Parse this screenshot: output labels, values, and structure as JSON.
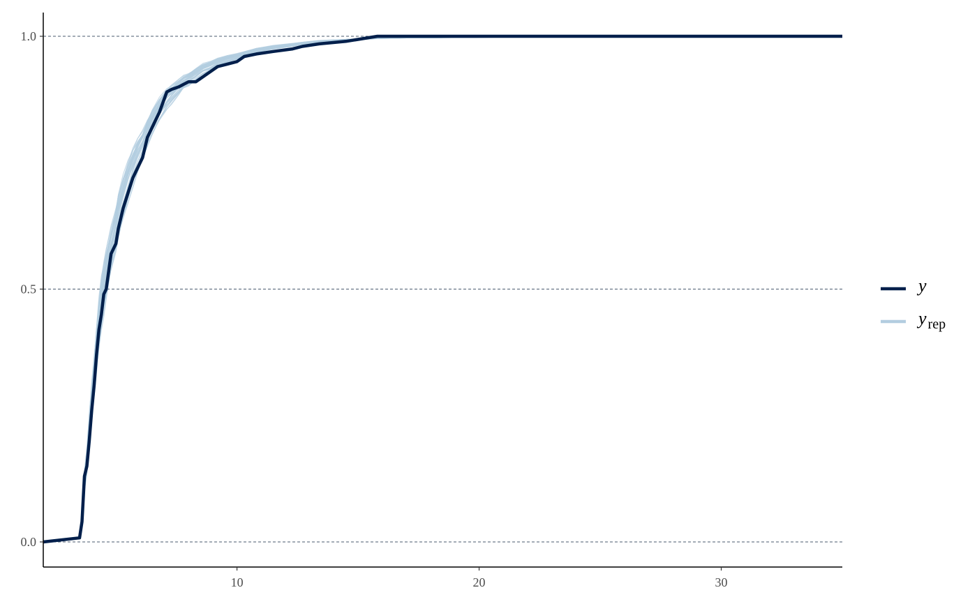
{
  "chart_data": {
    "type": "line",
    "title": "",
    "xlabel": "",
    "ylabel": "",
    "xlim": [
      2.0,
      35.0
    ],
    "ylim": [
      0.0,
      1.0
    ],
    "x_ticks": [
      10,
      20,
      30
    ],
    "y_ticks": [
      0.0,
      0.5,
      1.0
    ],
    "x_tick_labels": [
      "10",
      "20",
      "30"
    ],
    "y_tick_labels": [
      "0.0",
      "0.5",
      "1.0"
    ],
    "grid": "horizontal dashed at y ticks",
    "legend_position": "right",
    "colors": {
      "y": "#011f4b",
      "yrep": "#b3cde0",
      "axis": "#000000",
      "grid": "#4a5a6e"
    },
    "series": [
      {
        "name": "y",
        "legend_label": "y",
        "legend_sub": "",
        "x": [
          2.0,
          3.5,
          3.6,
          3.7,
          3.8,
          3.9,
          4.0,
          4.1,
          4.2,
          4.3,
          4.4,
          4.5,
          4.6,
          4.8,
          5.0,
          5.1,
          5.3,
          5.5,
          5.7,
          5.9,
          6.1,
          6.3,
          6.5,
          6.8,
          7.1,
          7.3,
          7.6,
          7.8,
          8.0,
          8.3,
          8.6,
          8.9,
          9.2,
          9.6,
          10.0,
          10.3,
          10.8,
          11.5,
          12.3,
          12.7,
          13.4,
          14.5,
          15.8,
          17.0,
          20.0,
          25.0,
          30.0,
          35.0
        ],
        "y": [
          0.0,
          0.008,
          0.04,
          0.13,
          0.15,
          0.2,
          0.26,
          0.31,
          0.37,
          0.42,
          0.45,
          0.49,
          0.5,
          0.57,
          0.59,
          0.62,
          0.66,
          0.69,
          0.72,
          0.74,
          0.76,
          0.8,
          0.82,
          0.85,
          0.89,
          0.895,
          0.9,
          0.905,
          0.91,
          0.91,
          0.92,
          0.93,
          0.94,
          0.945,
          0.95,
          0.96,
          0.965,
          0.97,
          0.975,
          0.98,
          0.985,
          0.99,
          1.0,
          1.0,
          1.0,
          1.0,
          1.0,
          1.0
        ]
      },
      {
        "name": "y_rep",
        "legend_label": "y",
        "legend_sub": "rep",
        "draws": 40,
        "reference_x": [
          2.0,
          3.5,
          3.6,
          3.7,
          3.8,
          3.9,
          4.0,
          4.1,
          4.2,
          4.3,
          4.4,
          4.5,
          4.6,
          4.8,
          5.0,
          5.1,
          5.3,
          5.5,
          5.7,
          5.9,
          6.1,
          6.3,
          6.5,
          6.8,
          7.1,
          7.3,
          7.6,
          7.8,
          8.0,
          8.3,
          8.6,
          8.9,
          9.2,
          9.6,
          10.0,
          10.3,
          10.8,
          11.5,
          12.3,
          12.7,
          13.4,
          14.5,
          15.8,
          17.0,
          20.0,
          25.0,
          30.0,
          35.0
        ],
        "reference_y": [
          0.0,
          0.008,
          0.05,
          0.12,
          0.16,
          0.22,
          0.28,
          0.33,
          0.38,
          0.43,
          0.47,
          0.5,
          0.53,
          0.58,
          0.62,
          0.645,
          0.68,
          0.71,
          0.74,
          0.765,
          0.785,
          0.81,
          0.83,
          0.855,
          0.875,
          0.885,
          0.9,
          0.91,
          0.915,
          0.925,
          0.935,
          0.94,
          0.948,
          0.955,
          0.96,
          0.965,
          0.972,
          0.978,
          0.983,
          0.986,
          0.99,
          0.993,
          0.996,
          0.997,
          0.998,
          1.0,
          1.0,
          1.0
        ]
      }
    ]
  }
}
